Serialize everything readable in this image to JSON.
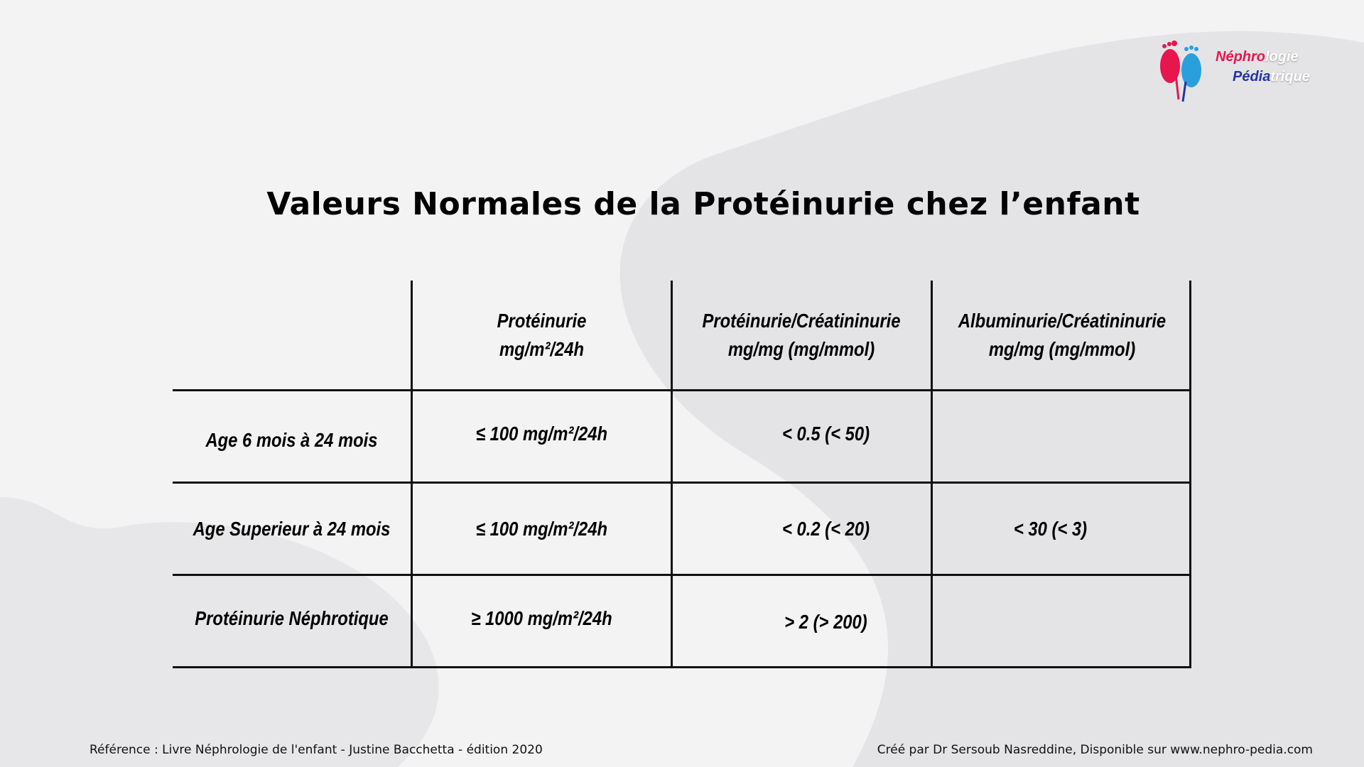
{
  "logo": {
    "line1_a": "Néphro",
    "line1_b": "logie",
    "line2_a": "Pédia",
    "line2_b": "trique"
  },
  "title": "Valeurs Normales de la Protéinurie chez l’enfant",
  "table": {
    "headers": [
      {
        "line1": "Protéinurie",
        "line2": "mg/m²/24h"
      },
      {
        "line1": "Protéinurie/Créatininurie",
        "line2": "mg/mg (mg/mmol)"
      },
      {
        "line1": "Albuminurie/Créatininurie",
        "line2": "mg/mg (mg/mmol)"
      }
    ],
    "rows": [
      {
        "label": "Age 6 mois à 24 mois",
        "cells": [
          "≤ 100 mg/m²/24h",
          "< 0.5 (< 50)",
          ""
        ]
      },
      {
        "label": "Age Superieur à 24 mois",
        "cells": [
          "≤ 100 mg/m²/24h",
          "< 0.2 (< 20)",
          "< 30 (< 3)"
        ]
      },
      {
        "label": "Protéinurie Néphrotique",
        "cells": [
          "≥ 1000 mg/m²/24h",
          "> 2 (> 200)",
          ""
        ]
      }
    ]
  },
  "footer": {
    "reference": "Référence : Livre Néphrologie de l'enfant - Justine Bacchetta - édition 2020",
    "credit": "Créé par Dr Sersoub Nasreddine, Disponible sur www.nephro-pedia.com"
  },
  "colors": {
    "brand_red": "#e8164e",
    "brand_blue": "#2a9fdc",
    "brand_navy": "#2334a8"
  }
}
